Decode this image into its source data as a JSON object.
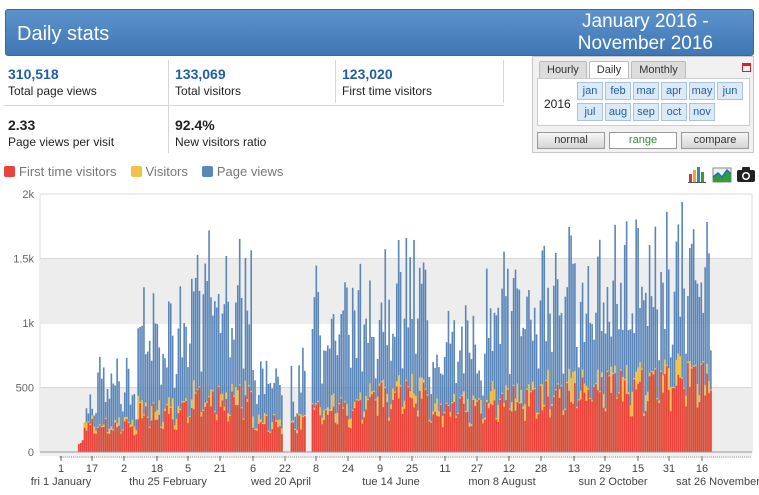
{
  "header": {
    "title": "Daily stats",
    "range_line1": "January 2016 -",
    "range_line2": "November 2016"
  },
  "stats": [
    {
      "value": "310,518",
      "label": "Total page views"
    },
    {
      "value": "133,069",
      "label": "Total visitors"
    },
    {
      "value": "123,020",
      "label": "First time visitors"
    },
    {
      "value": "2.33",
      "label": "Page views per visit"
    },
    {
      "value": "92.4%",
      "label": "New visitors ratio"
    }
  ],
  "picker": {
    "tabs": [
      "Hourly",
      "Daily",
      "Monthly"
    ],
    "active_tab": "Daily",
    "year": "2016",
    "months": [
      "jan",
      "feb",
      "mar",
      "apr",
      "may",
      "jun",
      "jul",
      "aug",
      "sep",
      "oct",
      "nov"
    ],
    "modes": [
      "normal",
      "range",
      "compare"
    ],
    "active_mode": "range"
  },
  "legend": [
    {
      "name": "First time visitors",
      "color": "#e8433b"
    },
    {
      "name": "Visitors",
      "color": "#f2c14a"
    },
    {
      "name": "Page views",
      "color": "#5b86b8"
    }
  ],
  "tools": [
    {
      "name": "bar-chart-icon"
    },
    {
      "name": "area-chart-icon"
    },
    {
      "name": "camera-icon"
    }
  ],
  "chart_data": {
    "type": "bar",
    "stacked": true,
    "ylim": [
      0,
      2000
    ],
    "y_ticks": [
      "0",
      "500",
      "1k",
      "1.5k",
      "2k"
    ],
    "x_ticks": [
      "1",
      "17",
      "2",
      "18",
      "5",
      "21",
      "6",
      "22",
      "8",
      "24",
      "9",
      "25",
      "11",
      "27",
      "12",
      "28",
      "13",
      "29",
      "15",
      "31",
      "16"
    ],
    "x_major_ticks": [
      "fri 1 January",
      "thu 25 February",
      "wed 20 April",
      "tue 14 June",
      "mon 8 August",
      "sun 2 October",
      "sat 26 November"
    ],
    "series": [
      {
        "name": "Page views",
        "color": "#5b86b8",
        "monthly_avg": [
          550,
          1000,
          1300,
          600,
          1100,
          1250,
          850,
          1200,
          1300,
          1350,
          1450
        ]
      },
      {
        "name": "Visitors",
        "color": "#f2c14a",
        "monthly_avg": [
          230,
          350,
          450,
          250,
          380,
          500,
          380,
          450,
          520,
          560,
          620
        ]
      },
      {
        "name": "First time visitors",
        "color": "#e8433b",
        "monthly_avg": [
          210,
          320,
          420,
          230,
          350,
          460,
          350,
          420,
          480,
          520,
          580
        ]
      }
    ]
  }
}
